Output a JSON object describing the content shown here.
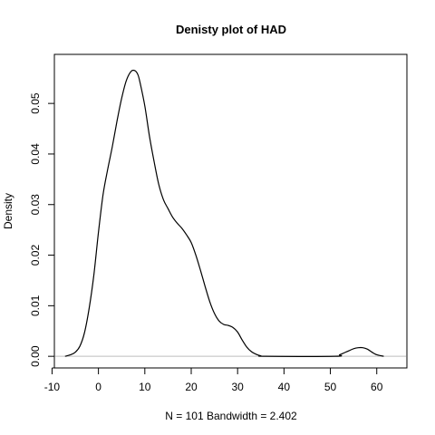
{
  "chart_data": {
    "type": "line",
    "title": "Denisty plot of  HAD",
    "xlabel": "N = 101   Bandwidth = 2.402",
    "ylabel": "Density",
    "xlim": [
      -9.5,
      66.5
    ],
    "ylim": [
      -0.0023,
      0.0597
    ],
    "x_ticks": [
      -10,
      0,
      10,
      20,
      30,
      40,
      50,
      60
    ],
    "y_ticks": [
      0.0,
      0.01,
      0.02,
      0.03,
      0.04,
      0.05
    ],
    "x_tick_labels": [
      "-10",
      "0",
      "10",
      "20",
      "30",
      "40",
      "50",
      "60"
    ],
    "y_tick_labels": [
      "0.00",
      "0.01",
      "0.02",
      "0.03",
      "0.04",
      "0.05"
    ],
    "zero_line": true,
    "zero_line_color": "#bebebe",
    "line_color": "#000000",
    "series": [
      {
        "x": [
          -7.2,
          -6,
          -5,
          -4,
          -3,
          -2,
          -1,
          0,
          1,
          2,
          3,
          4,
          5,
          6,
          7,
          7.8,
          8.5,
          9,
          10,
          11,
          12,
          13,
          14,
          15,
          16,
          17,
          18,
          19,
          20,
          21,
          22,
          23,
          24,
          25,
          26,
          27,
          28,
          29,
          30,
          31,
          32,
          33,
          34,
          35,
          36,
          51,
          52,
          53,
          54,
          55,
          56,
          57,
          58,
          59,
          60,
          61.5
        ],
        "y": [
          0.0,
          0.0003,
          0.0008,
          0.002,
          0.0047,
          0.0095,
          0.016,
          0.0245,
          0.032,
          0.037,
          0.0415,
          0.0465,
          0.051,
          0.0545,
          0.0563,
          0.0565,
          0.0557,
          0.054,
          0.0495,
          0.0435,
          0.0385,
          0.034,
          0.031,
          0.0292,
          0.0275,
          0.0263,
          0.0253,
          0.024,
          0.0225,
          0.02,
          0.017,
          0.0138,
          0.0108,
          0.0085,
          0.007,
          0.0063,
          0.0061,
          0.0057,
          0.0048,
          0.0032,
          0.0018,
          0.0009,
          0.0004,
          0.0001,
          0.0,
          0.0,
          0.0003,
          0.0007,
          0.0011,
          0.0015,
          0.0017,
          0.0017,
          0.0014,
          0.0008,
          0.0003,
          0.0
        ]
      }
    ]
  }
}
